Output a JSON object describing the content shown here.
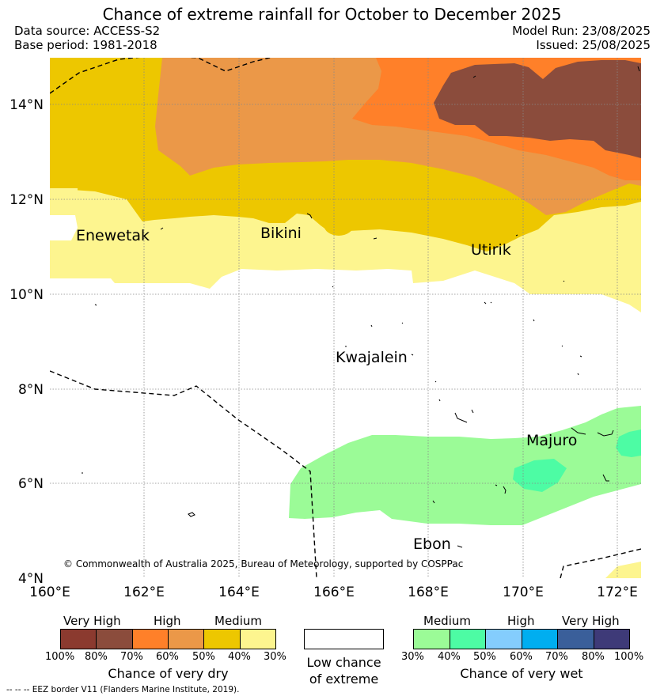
{
  "header": {
    "title": "Chance of extreme rainfall for October to December 2025",
    "data_source": "Data source: ACCESS-S2",
    "base_period": "Base period: 1981-2018",
    "model_run": "Model Run: 23/08/2025",
    "issued": "Issued: 25/08/2025"
  },
  "map": {
    "lat_labels": [
      "14°N",
      "12°N",
      "10°N",
      "8°N",
      "6°N",
      "4°N"
    ],
    "lon_labels": [
      "160°E",
      "162°E",
      "164°E",
      "166°E",
      "168°E",
      "170°E",
      "172°E"
    ],
    "places": [
      "Enewetak",
      "Bikini",
      "Utirik",
      "Kwajalein",
      "Majuro",
      "Ebon"
    ],
    "copyright": "© Commonwealth of Australia 2025, Bureau of Meteorology, supported by COSPPac"
  },
  "legend": {
    "dry": {
      "categories": [
        "Very High",
        "High",
        "Medium"
      ],
      "ticks": [
        "100%",
        "80%",
        "70%",
        "60%",
        "50%",
        "40%",
        "30%"
      ],
      "colors": [
        "#8b3a2f",
        "#8b4c3c",
        "#ff8029",
        "#eb9848",
        "#edc700",
        "#fdf58f"
      ],
      "caption": "Chance of very dry"
    },
    "neutral": {
      "line1": "Low chance",
      "line2": "of extreme",
      "color": "#ffffff"
    },
    "wet": {
      "categories": [
        "Medium",
        "High",
        "Very High"
      ],
      "ticks": [
        "30%",
        "40%",
        "50%",
        "60%",
        "70%",
        "80%",
        "100%"
      ],
      "colors": [
        "#9bfb97",
        "#4dfca4",
        "#84cdfd",
        "#00aef0",
        "#3a5f9a",
        "#3e3a78"
      ],
      "caption": "Chance of very wet"
    },
    "eez_note": "-- -- -- EEZ border V11 (Flanders Marine Institute, 2019)."
  }
}
